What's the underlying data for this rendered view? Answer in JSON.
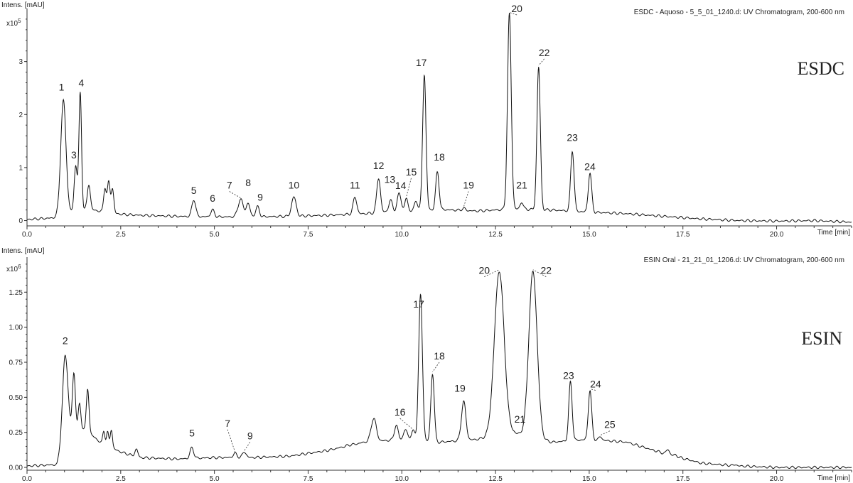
{
  "chart_data": [
    {
      "type": "line",
      "sample_label": "ESDC",
      "header": "ESDC - Aquoso - 5_5_01_1240.d: UV Chromatogram, 200-600 nm",
      "ylabel": "Intens. [mAU]",
      "y_multiplier": "x10",
      "y_multiplier_exp": "5",
      "xlabel": "Time [min]",
      "xlim": [
        0,
        22
      ],
      "ylim": [
        -0.1,
        4.0
      ],
      "x_ticks": [
        0.0,
        2.5,
        5.0,
        7.5,
        10.0,
        12.5,
        15.0,
        17.5,
        20.0
      ],
      "x_tick_labels": [
        "0.0",
        "2.5",
        "5.0",
        "7.5",
        "10.0",
        "12.5",
        "15.0",
        "17.5",
        "20.0"
      ],
      "y_ticks": [
        0,
        1,
        2,
        3
      ],
      "y_tick_labels": [
        "0",
        "1",
        "2",
        "3"
      ],
      "baseline_points": [
        [
          0,
          0.02
        ],
        [
          0.7,
          0.05
        ],
        [
          1.0,
          0.15
        ],
        [
          1.6,
          0.22
        ],
        [
          2.0,
          0.17
        ],
        [
          2.5,
          0.12
        ],
        [
          3.0,
          0.1
        ],
        [
          4.0,
          0.08
        ],
        [
          5.0,
          0.07
        ],
        [
          6.0,
          0.07
        ],
        [
          7.0,
          0.08
        ],
        [
          8.0,
          0.1
        ],
        [
          9.0,
          0.13
        ],
        [
          10.0,
          0.18
        ],
        [
          11.0,
          0.21
        ],
        [
          12.0,
          0.18
        ],
        [
          13.0,
          0.22
        ],
        [
          14.0,
          0.2
        ],
        [
          15.0,
          0.16
        ],
        [
          16.0,
          0.13
        ],
        [
          17.0,
          0.08
        ],
        [
          18.0,
          0.03
        ],
        [
          19.0,
          0.0
        ],
        [
          20.0,
          -0.01
        ],
        [
          21.0,
          0.0
        ],
        [
          22.0,
          -0.03
        ]
      ],
      "peaks": [
        {
          "label": "1",
          "t": 0.97,
          "h": 2.26,
          "w": 0.07,
          "lx": 0.92,
          "ly": 2.4
        },
        {
          "label": "3",
          "t": 1.3,
          "h": 1.04,
          "w": 0.04,
          "lx": 1.25,
          "ly": 1.12
        },
        {
          "label": "4",
          "t": 1.42,
          "h": 2.4,
          "w": 0.035,
          "lx": 1.45,
          "ly": 2.48
        },
        {
          "label": "",
          "t": 1.65,
          "h": 0.68,
          "w": 0.04
        },
        {
          "label": "",
          "t": 2.08,
          "h": 0.62,
          "w": 0.035
        },
        {
          "label": "",
          "t": 2.18,
          "h": 0.72,
          "w": 0.035
        },
        {
          "label": "",
          "t": 2.28,
          "h": 0.6,
          "w": 0.035
        },
        {
          "label": "5",
          "t": 4.45,
          "h": 0.4,
          "w": 0.05,
          "lx": 4.45,
          "ly": 0.45
        },
        {
          "label": "6",
          "t": 4.95,
          "h": 0.2,
          "w": 0.05,
          "lx": 4.95,
          "ly": 0.3
        },
        {
          "label": "7",
          "t": 5.7,
          "h": 0.4,
          "w": 0.07,
          "lx": 5.4,
          "ly": 0.55
        },
        {
          "label": "8",
          "t": 5.9,
          "h": 0.32,
          "w": 0.05,
          "lx": 5.9,
          "ly": 0.6
        },
        {
          "label": "9",
          "t": 6.15,
          "h": 0.26,
          "w": 0.05,
          "lx": 6.22,
          "ly": 0.32
        },
        {
          "label": "10",
          "t": 7.12,
          "h": 0.45,
          "w": 0.06,
          "lx": 7.12,
          "ly": 0.55
        },
        {
          "label": "11",
          "t": 8.75,
          "h": 0.44,
          "w": 0.05,
          "lx": 8.75,
          "ly": 0.55
        },
        {
          "label": "12",
          "t": 9.38,
          "h": 0.8,
          "w": 0.05,
          "lx": 9.38,
          "ly": 0.92
        },
        {
          "label": "13",
          "t": 9.7,
          "h": 0.38,
          "w": 0.05,
          "lx": 9.68,
          "ly": 0.66
        },
        {
          "label": "14",
          "t": 9.93,
          "h": 0.52,
          "w": 0.05,
          "lx": 9.97,
          "ly": 0.54
        },
        {
          "label": "15",
          "t": 10.12,
          "h": 0.42,
          "w": 0.04,
          "lx": 10.25,
          "ly": 0.8
        },
        {
          "label": "",
          "t": 10.38,
          "h": 0.38,
          "w": 0.04
        },
        {
          "label": "17",
          "t": 10.6,
          "h": 2.75,
          "w": 0.045,
          "lx": 10.52,
          "ly": 2.86
        },
        {
          "label": "18",
          "t": 10.95,
          "h": 0.92,
          "w": 0.045,
          "lx": 11.0,
          "ly": 1.08
        },
        {
          "label": "19",
          "t": 11.65,
          "h": 0.23,
          "w": 0.05,
          "lx": 11.78,
          "ly": 0.55
        },
        {
          "label": "20",
          "t": 12.87,
          "h": 3.9,
          "w": 0.05,
          "lx": 13.07,
          "ly": 3.88
        },
        {
          "label": "21",
          "t": 13.2,
          "h": 0.35,
          "w": 0.04,
          "lx": 13.2,
          "ly": 0.55
        },
        {
          "label": "22",
          "t": 13.65,
          "h": 2.9,
          "w": 0.045,
          "lx": 13.8,
          "ly": 3.05
        },
        {
          "label": "23",
          "t": 14.55,
          "h": 1.32,
          "w": 0.045,
          "lx": 14.55,
          "ly": 1.45
        },
        {
          "label": "24",
          "t": 15.02,
          "h": 0.9,
          "w": 0.045,
          "lx": 15.02,
          "ly": 0.9
        }
      ]
    },
    {
      "type": "line",
      "sample_label": "ESIN",
      "header": "ESIN Oral - 21_21_01_1206.d: UV Chromatogram, 200-600 nm",
      "ylabel": "Intens. [mAU]",
      "y_multiplier": "x10",
      "y_multiplier_exp": "6",
      "xlabel": "Time [min]",
      "xlim": [
        0,
        22
      ],
      "ylim": [
        -0.02,
        1.5
      ],
      "x_ticks": [
        0.0,
        2.5,
        5.0,
        7.5,
        10.0,
        12.5,
        15.0,
        17.5,
        20.0
      ],
      "x_tick_labels": [
        "0.0",
        "2.5",
        "5.0",
        "7.5",
        "10.0",
        "12.5",
        "15.0",
        "17.5",
        "20.0"
      ],
      "y_ticks": [
        0.0,
        0.25,
        0.5,
        0.75,
        1.0,
        1.25
      ],
      "y_tick_labels": [
        "0.00",
        "0.25",
        "0.50",
        "0.75",
        "1.00",
        "1.25"
      ],
      "baseline_points": [
        [
          0,
          0.01
        ],
        [
          0.8,
          0.02
        ],
        [
          1.0,
          0.25
        ],
        [
          1.5,
          0.28
        ],
        [
          2.0,
          0.17
        ],
        [
          2.5,
          0.11
        ],
        [
          3.0,
          0.07
        ],
        [
          4.0,
          0.06
        ],
        [
          5.0,
          0.07
        ],
        [
          6.0,
          0.07
        ],
        [
          7.0,
          0.08
        ],
        [
          8.0,
          0.12
        ],
        [
          9.0,
          0.18
        ],
        [
          10.0,
          0.2
        ],
        [
          11.0,
          0.18
        ],
        [
          12.0,
          0.2
        ],
        [
          13.0,
          0.25
        ],
        [
          14.0,
          0.18
        ],
        [
          15.0,
          0.2
        ],
        [
          16.0,
          0.18
        ],
        [
          17.0,
          0.1
        ],
        [
          18.0,
          0.03
        ],
        [
          19.0,
          0.01
        ],
        [
          20.0,
          0.0
        ],
        [
          22.0,
          0.0
        ]
      ],
      "peaks": [
        {
          "label": "2",
          "t": 1.02,
          "h": 0.8,
          "w": 0.07,
          "lx": 1.02,
          "ly": 0.86
        },
        {
          "label": "",
          "t": 1.25,
          "h": 0.67,
          "w": 0.04
        },
        {
          "label": "",
          "t": 1.4,
          "h": 0.45,
          "w": 0.035
        },
        {
          "label": "",
          "t": 1.62,
          "h": 0.56,
          "w": 0.035
        },
        {
          "label": "",
          "t": 2.05,
          "h": 0.26,
          "w": 0.03
        },
        {
          "label": "",
          "t": 2.15,
          "h": 0.25,
          "w": 0.03
        },
        {
          "label": "",
          "t": 2.25,
          "h": 0.27,
          "w": 0.03
        },
        {
          "label": "",
          "t": 2.92,
          "h": 0.13,
          "w": 0.04
        },
        {
          "label": "5",
          "t": 4.4,
          "h": 0.14,
          "w": 0.05,
          "lx": 4.4,
          "ly": 0.2
        },
        {
          "label": "7",
          "t": 5.55,
          "h": 0.1,
          "w": 0.05,
          "lx": 5.35,
          "ly": 0.27
        },
        {
          "label": "9",
          "t": 5.8,
          "h": 0.11,
          "w": 0.05,
          "lx": 5.95,
          "ly": 0.18
        },
        {
          "label": "",
          "t": 8.6,
          "h": 0.16,
          "w": 0.08
        },
        {
          "label": "",
          "t": 9.25,
          "h": 0.35,
          "w": 0.07
        },
        {
          "label": "",
          "t": 9.85,
          "h": 0.3,
          "w": 0.05
        },
        {
          "label": "",
          "t": 10.1,
          "h": 0.27,
          "w": 0.05
        },
        {
          "label": "16",
          "t": 10.3,
          "h": 0.26,
          "w": 0.05,
          "lx": 9.95,
          "ly": 0.35
        },
        {
          "label": "17",
          "t": 10.5,
          "h": 1.23,
          "w": 0.05,
          "lx": 10.45,
          "ly": 1.12
        },
        {
          "label": "18",
          "t": 10.82,
          "h": 0.67,
          "w": 0.045,
          "lx": 11.0,
          "ly": 0.75
        },
        {
          "label": "19",
          "t": 11.65,
          "h": 0.47,
          "w": 0.06,
          "lx": 11.55,
          "ly": 0.52
        },
        {
          "label": "20",
          "t": 12.6,
          "h": 1.4,
          "w": 0.13,
          "lx": 12.2,
          "ly": 1.36
        },
        {
          "label": "21",
          "t": 13.05,
          "h": 0.24,
          "w": 0.04,
          "lx": 13.15,
          "ly": 0.3
        },
        {
          "label": "22",
          "t": 13.5,
          "h": 1.4,
          "w": 0.11,
          "lx": 13.85,
          "ly": 1.36
        },
        {
          "label": "23",
          "t": 14.5,
          "h": 0.61,
          "w": 0.045,
          "lx": 14.45,
          "ly": 0.61
        },
        {
          "label": "24",
          "t": 15.02,
          "h": 0.55,
          "w": 0.045,
          "lx": 15.17,
          "ly": 0.55
        },
        {
          "label": "25",
          "t": 15.3,
          "h": 0.22,
          "w": 0.04,
          "lx": 15.55,
          "ly": 0.26
        },
        {
          "label": "",
          "t": 17.1,
          "h": 0.13,
          "w": 0.04
        },
        {
          "label": "",
          "t": 17.3,
          "h": 0.09,
          "w": 0.04
        },
        {
          "label": "",
          "t": 18.9,
          "h": 0.02,
          "w": 0.04
        }
      ]
    }
  ]
}
